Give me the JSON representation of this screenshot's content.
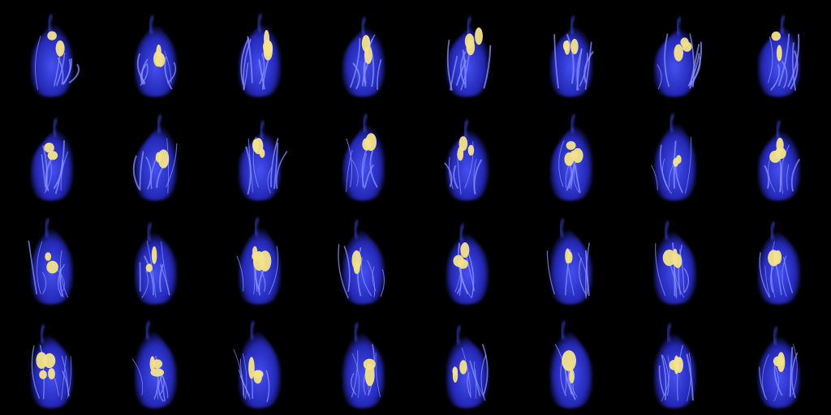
{
  "sprite_sheet": {
    "columns": 8,
    "rows": 4,
    "frame_count": 32,
    "colors": {
      "background": "#000000",
      "flame_outer": "#2a2fd6",
      "flame_mid": "#4a55ff",
      "flame_edge": "#8a92ff",
      "core": "#f3e38a"
    }
  }
}
